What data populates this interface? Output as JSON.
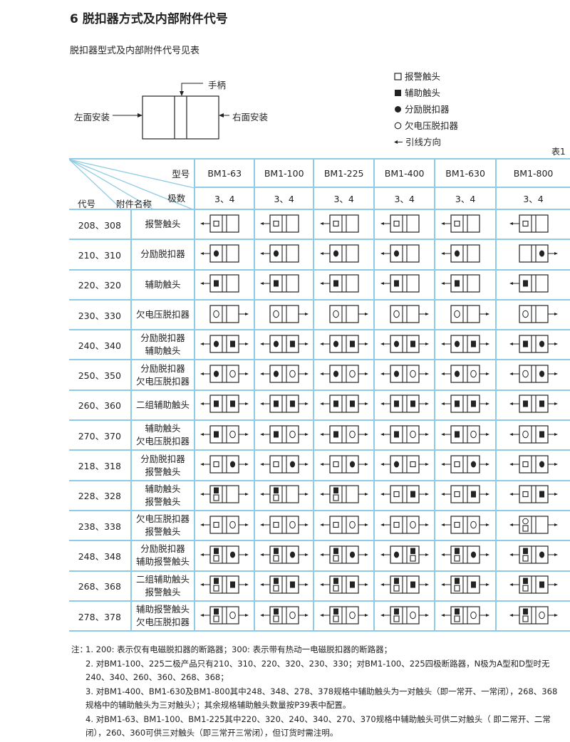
{
  "title": "6 脱扣器方式及内部附件代号",
  "subtitle": "脱扣器型式及内部附件代号见表",
  "figure": {
    "handle_label": "手柄",
    "left_mount_label": "左面安装",
    "right_mount_label": "右面安装"
  },
  "legend": [
    {
      "icon": "alarm",
      "label": "报警触头"
    },
    {
      "icon": "aux",
      "label": "辅助触头"
    },
    {
      "icon": "shunt",
      "label": "分励脱扣器"
    },
    {
      "icon": "uv",
      "label": "欠电压脱扣器"
    },
    {
      "icon": "arrow",
      "label": "引线方向"
    }
  ],
  "table_no": "表1",
  "table": {
    "header": {
      "model": "型号",
      "poles": "极数",
      "code": "代号",
      "accessory": "附件名称"
    },
    "models": [
      "BM1-63",
      "BM1-100",
      "BM1-225",
      "BM1-400",
      "BM1-630",
      "BM1-800"
    ],
    "poles": [
      "3、4",
      "3、4",
      "3、4",
      "3、4",
      "3、4",
      "3、4"
    ],
    "rows": [
      {
        "code": "208、308",
        "name": [
          "报警触头"
        ],
        "cells": [
          {
            "left": "alarm",
            "right": "",
            "arrows": "left"
          },
          {
            "left": "alarm",
            "right": "",
            "arrows": "left"
          },
          {
            "left": "alarm",
            "right": "",
            "arrows": "left"
          },
          {
            "left": "alarm",
            "right": "",
            "arrows": "left"
          },
          {
            "left": "alarm",
            "right": "",
            "arrows": "left"
          },
          {
            "left": "alarm",
            "right": "",
            "arrows": "left"
          }
        ]
      },
      {
        "code": "210、310",
        "name": [
          "分励脱扣器"
        ],
        "cells": [
          {
            "left": "shunt",
            "right": "",
            "arrows": "left"
          },
          {
            "left": "shunt",
            "right": "",
            "arrows": "left"
          },
          {
            "left": "shunt",
            "right": "",
            "arrows": "left"
          },
          {
            "left": "shunt",
            "right": "",
            "arrows": "left"
          },
          {
            "left": "shunt",
            "right": "",
            "arrows": "left"
          },
          {
            "left": "",
            "right": "shunt",
            "arrows": "right"
          }
        ]
      },
      {
        "code": "220、320",
        "name": [
          "辅助触头"
        ],
        "cells": [
          {
            "left": "aux",
            "right": "",
            "arrows": "left"
          },
          {
            "left": "aux",
            "right": "",
            "arrows": "left"
          },
          {
            "left": "aux",
            "right": "",
            "arrows": "left"
          },
          {
            "left": "aux",
            "right": "",
            "arrows": "left"
          },
          {
            "left": "aux",
            "right": "",
            "arrows": "left"
          },
          {
            "left": "aux",
            "right": "",
            "arrows": "left"
          }
        ]
      },
      {
        "code": "230、330",
        "name": [
          "欠电压脱扣器"
        ],
        "cells": [
          {
            "left": "uv",
            "right": "",
            "arrows": "right"
          },
          {
            "left": "uv",
            "right": "",
            "arrows": "right"
          },
          {
            "left": "uv",
            "right": "",
            "arrows": "right"
          },
          {
            "left": "uv",
            "right": "",
            "arrows": "right"
          },
          {
            "left": "uv",
            "right": "",
            "arrows": "right"
          },
          {
            "left": "uv",
            "right": "",
            "arrows": "right"
          }
        ]
      },
      {
        "code": "240、340",
        "name": [
          "分励脱扣器",
          "辅助触头"
        ],
        "cells": [
          {
            "left": "shunt",
            "right": "aux",
            "arrows": "both"
          },
          {
            "left": "shunt",
            "right": "aux",
            "arrows": "both"
          },
          {
            "left": "shunt",
            "right": "aux",
            "arrows": "both"
          },
          {
            "left": "shunt",
            "right": "aux",
            "arrows": "both"
          },
          {
            "left": "shunt",
            "right": "aux",
            "arrows": "both"
          },
          {
            "left": "aux",
            "right": "shunt",
            "arrows": "both"
          }
        ]
      },
      {
        "code": "250、350",
        "name": [
          "分励脱扣器",
          "欠电压脱扣器"
        ],
        "cells": [
          {
            "left": "shunt",
            "right": "uv",
            "arrows": "both"
          },
          {
            "left": "shunt",
            "right": "uv",
            "arrows": "both"
          },
          {
            "left": "shunt",
            "right": "uv",
            "arrows": "both"
          },
          {
            "left": "shunt",
            "right": "uv",
            "arrows": "both"
          },
          {
            "left": "shunt",
            "right": "uv",
            "arrows": "both"
          },
          {
            "left": "uv",
            "right": "shunt",
            "arrows": "both"
          }
        ]
      },
      {
        "code": "260、360",
        "name": [
          "二组辅助触头"
        ],
        "cells": [
          {
            "left": "aux",
            "right": "aux",
            "arrows": "both"
          },
          {
            "left": "aux",
            "right": "aux",
            "arrows": "both"
          },
          {
            "left": "aux",
            "right": "aux",
            "arrows": "both"
          },
          {
            "left": "aux",
            "right": "aux",
            "arrows": "both"
          },
          {
            "left": "aux",
            "right": "aux",
            "arrows": "both"
          },
          {
            "left": "aux",
            "right": "aux",
            "arrows": "both"
          }
        ]
      },
      {
        "code": "270、370",
        "name": [
          "辅助触头",
          "欠电压脱扣器"
        ],
        "cells": [
          {
            "left": "aux",
            "right": "uv",
            "arrows": "both"
          },
          {
            "left": "aux",
            "right": "uv",
            "arrows": "both"
          },
          {
            "left": "aux",
            "right": "uv",
            "arrows": "both"
          },
          {
            "left": "aux",
            "right": "uv",
            "arrows": "both"
          },
          {
            "left": "aux",
            "right": "uv",
            "arrows": "both"
          },
          {
            "left": "uv",
            "right": "aux",
            "arrows": "both"
          }
        ]
      },
      {
        "code": "218、318",
        "name": [
          "分励脱扣器",
          "报警触头"
        ],
        "cells": [
          {
            "left": "alarm",
            "right": "shunt",
            "arrows": "both"
          },
          {
            "left": "alarm",
            "right": "shunt",
            "arrows": "both"
          },
          {
            "left": "alarm",
            "right": "shunt",
            "arrows": "both"
          },
          {
            "left": "shunt",
            "right": "alarm",
            "arrows": "both"
          },
          {
            "left": "alarm",
            "right": "shunt",
            "arrows": "both"
          },
          {
            "left": "alarm",
            "right": "shunt",
            "arrows": "both"
          }
        ]
      },
      {
        "code": "228、328",
        "name": [
          "辅助触头",
          "报警触头"
        ],
        "cells": [
          {
            "left": "aux+alarm",
            "right": "",
            "arrows": "both"
          },
          {
            "left": "aux+alarm",
            "right": "",
            "arrows": "both"
          },
          {
            "left": "aux+alarm",
            "right": "",
            "arrows": "both"
          },
          {
            "left": "alarm",
            "right": "aux",
            "arrows": "both"
          },
          {
            "left": "alarm",
            "right": "aux",
            "arrows": "both"
          },
          {
            "left": "alarm",
            "right": "aux",
            "arrows": "both"
          }
        ]
      },
      {
        "code": "238、338",
        "name": [
          "欠电压脱扣器",
          "报警触头"
        ],
        "cells": [
          {
            "left": "alarm",
            "right": "uv",
            "arrows": "both"
          },
          {
            "left": "alarm",
            "right": "uv",
            "arrows": "both"
          },
          {
            "left": "alarm",
            "right": "uv",
            "arrows": "both"
          },
          {
            "left": "alarm",
            "right": "uv",
            "arrows": "both"
          },
          {
            "left": "alarm",
            "right": "uv",
            "arrows": "both"
          },
          {
            "left": "uv+alarm",
            "right": "",
            "arrows": "both"
          }
        ]
      },
      {
        "code": "248、348",
        "name": [
          "分励脱扣器",
          "辅助报警触头"
        ],
        "cells": [
          {
            "left": "aux+alarm",
            "right": "shunt",
            "arrows": "both"
          },
          {
            "left": "aux+alarm",
            "right": "shunt",
            "arrows": "both"
          },
          {
            "left": "aux+alarm",
            "right": "shunt",
            "arrows": "both"
          },
          {
            "left": "shunt",
            "right": "aux+alarm",
            "arrows": "both"
          },
          {
            "left": "aux+alarm",
            "right": "shunt",
            "arrows": "both"
          },
          {
            "left": "aux+alarm",
            "right": "shunt",
            "arrows": "both"
          }
        ]
      },
      {
        "code": "268、368",
        "name": [
          "二组辅助触头",
          "报警触头"
        ],
        "cells": [
          {
            "left": "aux+alarm",
            "right": "aux",
            "arrows": "both"
          },
          {
            "left": "aux+alarm",
            "right": "aux",
            "arrows": "both"
          },
          {
            "left": "aux+alarm",
            "right": "aux",
            "arrows": "both"
          },
          {
            "left": "aux+alarm",
            "right": "aux",
            "arrows": "both"
          },
          {
            "left": "aux+alarm",
            "right": "aux",
            "arrows": "both"
          },
          {
            "left": "aux+alarm",
            "right": "aux",
            "arrows": "both"
          }
        ]
      },
      {
        "code": "278、378",
        "name": [
          "辅助报警触头",
          "欠电压脱扣器"
        ],
        "cells": [
          {
            "left": "aux+alarm",
            "right": "uv",
            "arrows": "both"
          },
          {
            "left": "aux+alarm",
            "right": "uv",
            "arrows": "both"
          },
          {
            "left": "aux+alarm",
            "right": "uv",
            "arrows": "both"
          },
          {
            "left": "aux+alarm",
            "right": "uv",
            "arrows": "both"
          },
          {
            "left": "aux+alarm",
            "right": "uv",
            "arrows": "both"
          },
          {
            "left": "aux+alarm",
            "right": "uv",
            "arrows": "both"
          }
        ]
      }
    ]
  },
  "notes": {
    "label": "注：",
    "items": [
      "1. 200: 表示仅有电磁脱扣器的断路器；300: 表示带有热动一电磁脱扣器的断路器；",
      "2. 对BM1-100、225二极产品只有210、310、220、320、230、330；对BM1-100、225四极断路器，N极为A型和D型时无240、340、260、360、268、368；",
      "3. 对BM1-400、BM1-630及BM1-800其中248、348、278、378规格中辅助触头为一对触头（即一常开、一常闭），268、368规格中的辅助触头为三对触头）；其余规格辅助触头数量按P39表中配置。",
      "4. 对BM1-63、BM1-100、BM1-225其中220、320、240、340、270、370规格中辅助触头可供二对触头（ 即二常开、二常闭），260、360可供三对触头（即三常开三常闭），但订货时需注明。"
    ]
  }
}
